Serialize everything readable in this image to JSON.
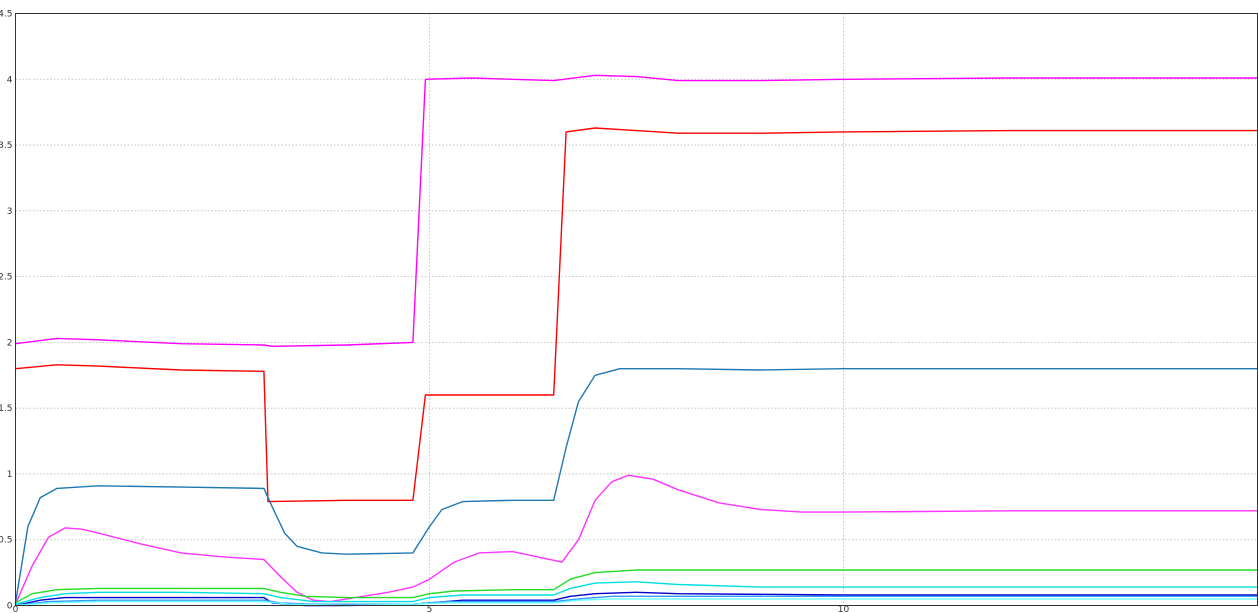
{
  "chart_data": {
    "type": "line",
    "title": "",
    "xlabel": "",
    "ylabel": "",
    "xlim": [
      0,
      15
    ],
    "ylim": [
      0,
      4.5
    ],
    "grid": true,
    "x_ticks": [
      {
        "value": 0,
        "label": "0"
      },
      {
        "value": 5,
        "label": "5"
      },
      {
        "value": 10,
        "label": "10"
      }
    ],
    "y_ticks": [
      {
        "value": 0,
        "label": "0"
      },
      {
        "value": 0.5,
        "label": "0.5"
      },
      {
        "value": 1,
        "label": "1"
      },
      {
        "value": 1.5,
        "label": "1.5"
      },
      {
        "value": 2,
        "label": "2"
      },
      {
        "value": 2.5,
        "label": "2.5"
      },
      {
        "value": 3,
        "label": "3"
      },
      {
        "value": 3.5,
        "label": "3.5"
      },
      {
        "value": 4,
        "label": "4"
      },
      {
        "value": 4.5,
        "label": "4.5"
      }
    ],
    "series": [
      {
        "color": "#ff00ff",
        "points": [
          [
            0,
            1.99
          ],
          [
            0.5,
            2.03
          ],
          [
            1,
            2.02
          ],
          [
            2,
            1.99
          ],
          [
            3,
            1.98
          ],
          [
            3.1,
            1.97
          ],
          [
            4,
            1.98
          ],
          [
            4.8,
            2.0
          ],
          [
            4.95,
            4.0
          ],
          [
            5.5,
            4.01
          ],
          [
            6,
            4.0
          ],
          [
            6.5,
            3.99
          ],
          [
            7,
            4.03
          ],
          [
            7.5,
            4.02
          ],
          [
            8,
            3.99
          ],
          [
            9,
            3.99
          ],
          [
            10,
            4.0
          ],
          [
            12,
            4.01
          ],
          [
            15,
            4.01
          ]
        ]
      },
      {
        "color": "#ff0000",
        "points": [
          [
            0,
            1.8
          ],
          [
            0.5,
            1.83
          ],
          [
            1,
            1.82
          ],
          [
            2,
            1.79
          ],
          [
            3,
            1.78
          ],
          [
            3.05,
            0.79
          ],
          [
            4,
            0.8
          ],
          [
            4.8,
            0.8
          ],
          [
            4.95,
            1.6
          ],
          [
            5.5,
            1.6
          ],
          [
            6,
            1.6
          ],
          [
            6.5,
            1.6
          ],
          [
            6.65,
            3.6
          ],
          [
            7,
            3.63
          ],
          [
            7.5,
            3.61
          ],
          [
            8,
            3.59
          ],
          [
            9,
            3.59
          ],
          [
            10,
            3.6
          ],
          [
            12,
            3.61
          ],
          [
            15,
            3.61
          ]
        ]
      },
      {
        "color": "#1f77b4",
        "points": [
          [
            0,
            0.02
          ],
          [
            0.15,
            0.6
          ],
          [
            0.3,
            0.82
          ],
          [
            0.5,
            0.89
          ],
          [
            1,
            0.91
          ],
          [
            2,
            0.9
          ],
          [
            3,
            0.89
          ],
          [
            3.1,
            0.75
          ],
          [
            3.25,
            0.55
          ],
          [
            3.4,
            0.45
          ],
          [
            3.7,
            0.4
          ],
          [
            4,
            0.39
          ],
          [
            4.8,
            0.4
          ],
          [
            5,
            0.6
          ],
          [
            5.15,
            0.73
          ],
          [
            5.4,
            0.79
          ],
          [
            6,
            0.8
          ],
          [
            6.5,
            0.8
          ],
          [
            6.65,
            1.2
          ],
          [
            6.8,
            1.55
          ],
          [
            7,
            1.75
          ],
          [
            7.3,
            1.8
          ],
          [
            8,
            1.8
          ],
          [
            9,
            1.79
          ],
          [
            10,
            1.8
          ],
          [
            12,
            1.8
          ],
          [
            15,
            1.8
          ]
        ]
      },
      {
        "color": "#ff33ff",
        "points": [
          [
            0,
            0.01
          ],
          [
            0.2,
            0.3
          ],
          [
            0.4,
            0.52
          ],
          [
            0.6,
            0.59
          ],
          [
            0.8,
            0.58
          ],
          [
            1,
            0.55
          ],
          [
            1.5,
            0.47
          ],
          [
            2,
            0.4
          ],
          [
            2.5,
            0.37
          ],
          [
            3,
            0.35
          ],
          [
            3.2,
            0.22
          ],
          [
            3.4,
            0.1
          ],
          [
            3.6,
            0.04
          ],
          [
            3.8,
            0.03
          ],
          [
            4,
            0.05
          ],
          [
            4.5,
            0.1
          ],
          [
            4.8,
            0.14
          ],
          [
            5,
            0.2
          ],
          [
            5.3,
            0.33
          ],
          [
            5.6,
            0.4
          ],
          [
            6,
            0.41
          ],
          [
            6.3,
            0.37
          ],
          [
            6.6,
            0.33
          ],
          [
            6.8,
            0.5
          ],
          [
            7,
            0.8
          ],
          [
            7.2,
            0.94
          ],
          [
            7.4,
            0.99
          ],
          [
            7.7,
            0.96
          ],
          [
            8,
            0.88
          ],
          [
            8.5,
            0.78
          ],
          [
            9,
            0.73
          ],
          [
            9.5,
            0.71
          ],
          [
            10,
            0.71
          ],
          [
            12,
            0.72
          ],
          [
            15,
            0.72
          ]
        ]
      },
      {
        "color": "#22dd22",
        "points": [
          [
            0,
            0.02
          ],
          [
            0.2,
            0.09
          ],
          [
            0.5,
            0.12
          ],
          [
            1,
            0.13
          ],
          [
            2,
            0.13
          ],
          [
            3,
            0.13
          ],
          [
            3.2,
            0.1
          ],
          [
            3.5,
            0.07
          ],
          [
            4,
            0.06
          ],
          [
            4.8,
            0.06
          ],
          [
            5,
            0.09
          ],
          [
            5.3,
            0.11
          ],
          [
            6,
            0.12
          ],
          [
            6.5,
            0.12
          ],
          [
            6.7,
            0.2
          ],
          [
            7,
            0.25
          ],
          [
            7.5,
            0.27
          ],
          [
            8,
            0.27
          ],
          [
            10,
            0.27
          ],
          [
            12,
            0.27
          ],
          [
            15,
            0.27
          ]
        ]
      },
      {
        "color": "#00e0e0",
        "points": [
          [
            0,
            0.01
          ],
          [
            0.3,
            0.06
          ],
          [
            0.6,
            0.09
          ],
          [
            1,
            0.1
          ],
          [
            2,
            0.1
          ],
          [
            3,
            0.09
          ],
          [
            3.2,
            0.06
          ],
          [
            3.6,
            0.03
          ],
          [
            4,
            0.03
          ],
          [
            4.8,
            0.03
          ],
          [
            5,
            0.06
          ],
          [
            5.4,
            0.08
          ],
          [
            6,
            0.08
          ],
          [
            6.5,
            0.08
          ],
          [
            6.7,
            0.13
          ],
          [
            7,
            0.17
          ],
          [
            7.5,
            0.18
          ],
          [
            8,
            0.16
          ],
          [
            9,
            0.14
          ],
          [
            10,
            0.14
          ],
          [
            12,
            0.14
          ],
          [
            15,
            0.14
          ]
        ]
      },
      {
        "color": "#0000cc",
        "points": [
          [
            0,
            0.0
          ],
          [
            0.3,
            0.04
          ],
          [
            0.6,
            0.06
          ],
          [
            1,
            0.06
          ],
          [
            2,
            0.06
          ],
          [
            3,
            0.06
          ],
          [
            3.1,
            0.02
          ],
          [
            3.5,
            0.0
          ],
          [
            4,
            0.0
          ],
          [
            4.8,
            0.01
          ],
          [
            5,
            0.02
          ],
          [
            5.4,
            0.04
          ],
          [
            6,
            0.04
          ],
          [
            6.5,
            0.04
          ],
          [
            6.7,
            0.07
          ],
          [
            7,
            0.09
          ],
          [
            7.5,
            0.1
          ],
          [
            8,
            0.09
          ],
          [
            10,
            0.08
          ],
          [
            12,
            0.08
          ],
          [
            15,
            0.08
          ]
        ]
      },
      {
        "color": "#3399ff",
        "points": [
          [
            0,
            0.0
          ],
          [
            0.4,
            0.03
          ],
          [
            1,
            0.04
          ],
          [
            2,
            0.04
          ],
          [
            3,
            0.04
          ],
          [
            3.2,
            0.02
          ],
          [
            3.6,
            0.01
          ],
          [
            4,
            0.01
          ],
          [
            4.8,
            0.01
          ],
          [
            5.2,
            0.03
          ],
          [
            6,
            0.03
          ],
          [
            6.5,
            0.03
          ],
          [
            6.8,
            0.05
          ],
          [
            7.2,
            0.07
          ],
          [
            8,
            0.07
          ],
          [
            10,
            0.07
          ],
          [
            15,
            0.07
          ]
        ]
      },
      {
        "color": "#66ffff",
        "points": [
          [
            0,
            0.0
          ],
          [
            0.4,
            0.02
          ],
          [
            1,
            0.03
          ],
          [
            2,
            0.03
          ],
          [
            3,
            0.03
          ],
          [
            3.3,
            0.01
          ],
          [
            4,
            0.0
          ],
          [
            4.8,
            0.01
          ],
          [
            5.2,
            0.02
          ],
          [
            6,
            0.02
          ],
          [
            6.5,
            0.02
          ],
          [
            6.8,
            0.04
          ],
          [
            7.2,
            0.05
          ],
          [
            8,
            0.05
          ],
          [
            10,
            0.05
          ],
          [
            15,
            0.05
          ]
        ]
      }
    ]
  }
}
